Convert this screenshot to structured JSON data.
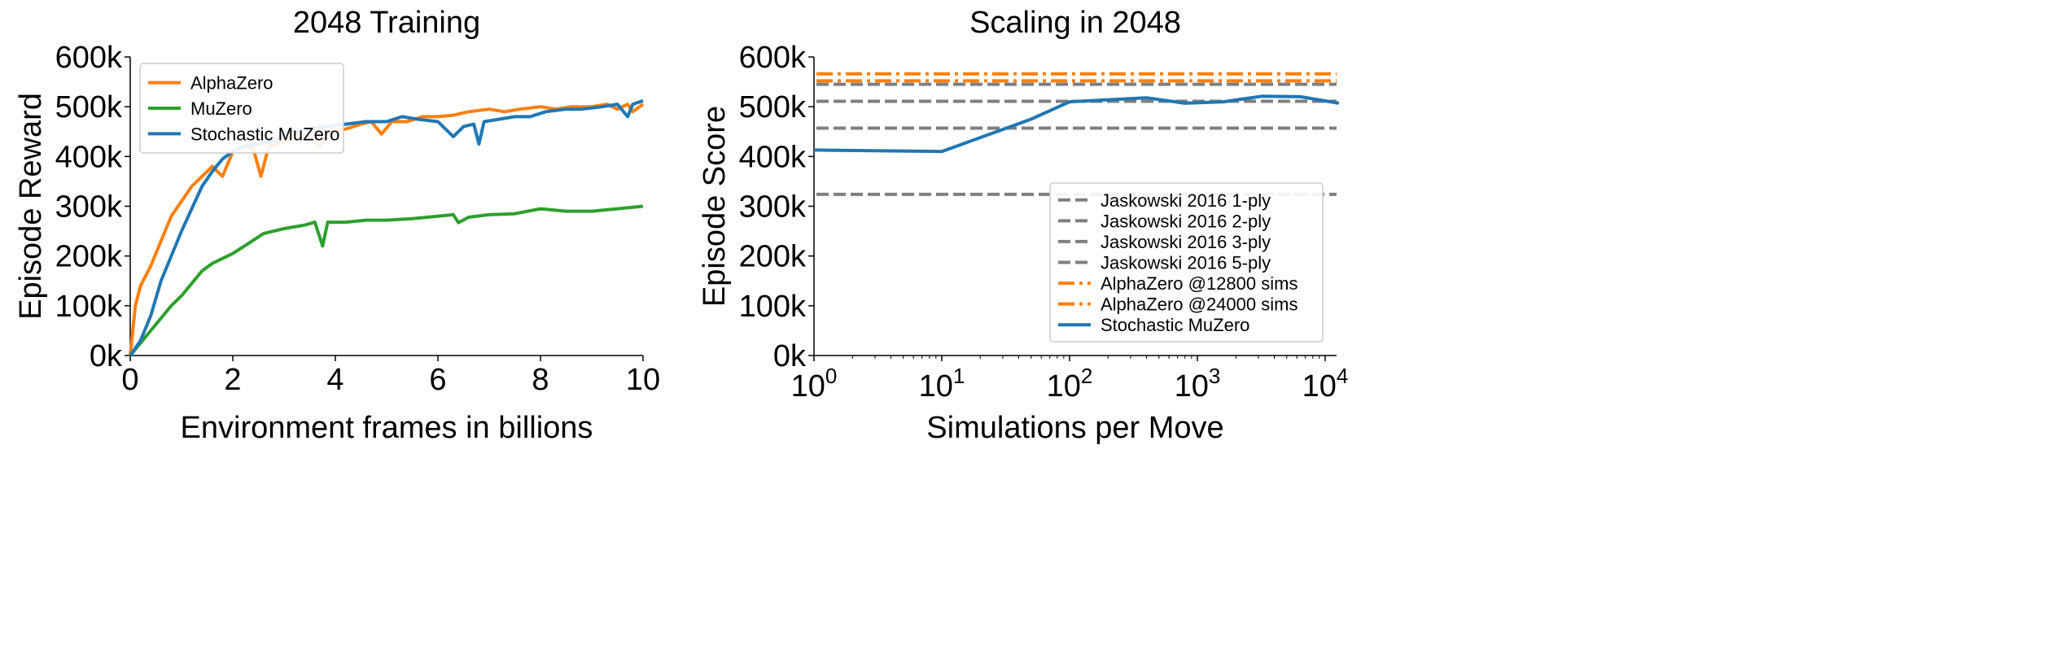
{
  "chart_data": [
    {
      "type": "line",
      "title": "2048 Training",
      "xlabel": "Environment frames in billions",
      "ylabel": "Episode Reward",
      "xlim": [
        0,
        10
      ],
      "ylim": [
        0,
        600000
      ],
      "xticks": [
        0,
        2,
        4,
        6,
        8,
        10
      ],
      "xtick_labels": [
        "0",
        "2",
        "4",
        "6",
        "8",
        "10"
      ],
      "yticks": [
        0,
        100000,
        200000,
        300000,
        400000,
        500000,
        600000
      ],
      "ytick_labels": [
        "0k",
        "100k",
        "200k",
        "300k",
        "400k",
        "500k",
        "600k"
      ],
      "grid": false,
      "legend_placement": "top-left",
      "series": [
        {
          "name": "AlphaZero",
          "color": "#ff7f0e",
          "x": [
            0,
            0.1,
            0.2,
            0.4,
            0.6,
            0.8,
            1.0,
            1.2,
            1.4,
            1.6,
            1.8,
            2.0,
            2.2,
            2.4,
            2.55,
            2.7,
            3.0,
            3.3,
            3.5,
            3.7,
            3.9,
            4.2,
            4.5,
            4.7,
            4.9,
            5.1,
            5.4,
            5.7,
            6.0,
            6.3,
            6.6,
            7.0,
            7.3,
            7.6,
            8.0,
            8.3,
            8.6,
            9.0,
            9.3,
            9.5,
            9.7,
            9.8,
            10
          ],
          "y": [
            0,
            100,
            140,
            180,
            230,
            280,
            310,
            340,
            360,
            380,
            360,
            410,
            420,
            415,
            360,
            420,
            430,
            450,
            440,
            420,
            450,
            455,
            465,
            470,
            445,
            470,
            470,
            480,
            480,
            483,
            490,
            495,
            490,
            495,
            500,
            495,
            500,
            500,
            505,
            495,
            505,
            490,
            505
          ]
        },
        {
          "name": "MuZero",
          "color": "#2ca02c",
          "x": [
            0,
            0.2,
            0.4,
            0.6,
            0.8,
            1.0,
            1.2,
            1.4,
            1.6,
            1.8,
            2.0,
            2.3,
            2.6,
            3.0,
            3.4,
            3.6,
            3.75,
            3.85,
            4.2,
            4.6,
            5.0,
            5.5,
            6.0,
            6.3,
            6.4,
            6.6,
            7.0,
            7.5,
            8.0,
            8.5,
            9.0,
            9.5,
            9.8,
            10
          ],
          "y": [
            0,
            25,
            50,
            75,
            100,
            120,
            145,
            170,
            185,
            195,
            205,
            225,
            245,
            255,
            262,
            268,
            220,
            268,
            268,
            272,
            272,
            275,
            280,
            283,
            267,
            278,
            283,
            285,
            295,
            290,
            290,
            295,
            298,
            300
          ]
        },
        {
          "name": "Stochastic MuZero",
          "color": "#1f77b4",
          "x": [
            0,
            0.2,
            0.4,
            0.6,
            0.8,
            1.0,
            1.2,
            1.4,
            1.6,
            1.8,
            2.0,
            2.2,
            2.5,
            2.8,
            3.1,
            3.5,
            3.8,
            4.2,
            4.6,
            5.0,
            5.3,
            5.6,
            6.0,
            6.3,
            6.5,
            6.7,
            6.8,
            6.9,
            7.2,
            7.5,
            7.8,
            8.1,
            8.5,
            8.8,
            9.2,
            9.5,
            9.7,
            9.8,
            10
          ],
          "y": [
            0,
            30,
            80,
            150,
            200,
            250,
            295,
            340,
            370,
            395,
            410,
            420,
            425,
            430,
            450,
            455,
            460,
            465,
            470,
            470,
            480,
            475,
            470,
            440,
            460,
            465,
            425,
            470,
            475,
            480,
            480,
            490,
            495,
            495,
            500,
            505,
            480,
            505,
            512
          ]
        }
      ],
      "y_units_note": "y in thousands"
    },
    {
      "type": "line",
      "title": "Scaling in 2048",
      "xlabel": "Simulations per Move",
      "ylabel": "Episode Score",
      "xscale": "log",
      "xlim": [
        1,
        12800
      ],
      "ylim": [
        0,
        600000
      ],
      "xticks": [
        1,
        10,
        100,
        1000,
        10000
      ],
      "xtick_labels": [
        "0",
        "1",
        "2",
        "3",
        "4"
      ],
      "xtick_base": "10",
      "yticks": [
        0,
        100000,
        200000,
        300000,
        400000,
        500000,
        600000
      ],
      "ytick_labels": [
        "0k",
        "100k",
        "200k",
        "300k",
        "400k",
        "500k",
        "600k"
      ],
      "grid": false,
      "legend_placement": "lower-right",
      "hlines": [
        {
          "name": "Jaskowski 2016 1-ply",
          "y": 324,
          "color": "#7f7f7f",
          "style": "dashed"
        },
        {
          "name": "Jaskowski 2016 2-ply",
          "y": 457,
          "color": "#7f7f7f",
          "style": "dashed"
        },
        {
          "name": "Jaskowski 2016 3-ply",
          "y": 511,
          "color": "#7f7f7f",
          "style": "dashed"
        },
        {
          "name": "Jaskowski 2016 5-ply",
          "y": 545,
          "color": "#7f7f7f",
          "style": "dashed"
        },
        {
          "name": "AlphaZero @12800 sims",
          "y": 552,
          "color": "#ff7f0e",
          "style": "dashdot"
        },
        {
          "name": "AlphaZero @24000 sims",
          "y": 566,
          "color": "#ff7f0e",
          "style": "dashdot"
        }
      ],
      "series": [
        {
          "name": "Stochastic MuZero",
          "color": "#1f77b4",
          "x": [
            1,
            10,
            50,
            100,
            400,
            800,
            1600,
            3200,
            6400,
            12800
          ],
          "y": [
            413,
            410,
            475,
            510,
            518,
            507,
            510,
            521,
            520,
            507
          ]
        }
      ],
      "y_units_note": "y in thousands"
    }
  ]
}
